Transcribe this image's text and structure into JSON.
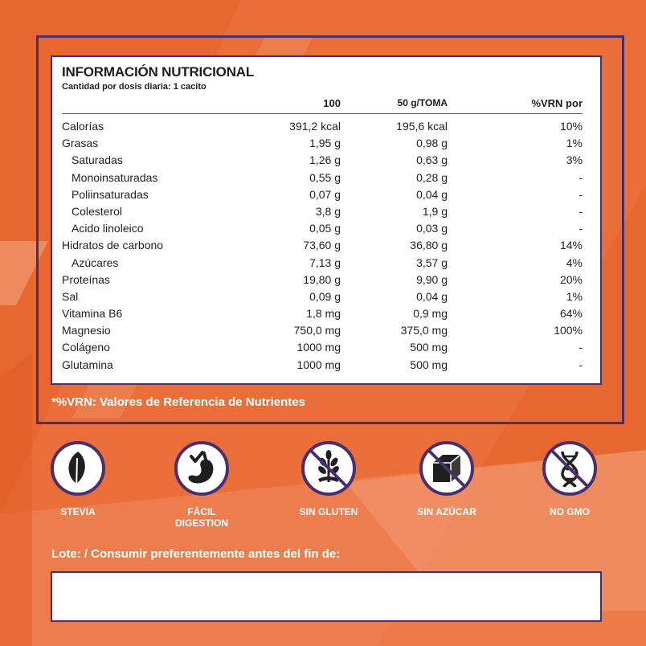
{
  "colors": {
    "background": "#e8662f",
    "accent": "#4a2f6e",
    "panel": "#ffffff"
  },
  "nutrition": {
    "title": "INFORMACIÓN NUTRICIONAL",
    "subtitle": "Cantidad por dosis diaria: 1 cacito",
    "columns": [
      "100",
      "50 g/TOMA",
      "%VRN por"
    ],
    "rows": [
      {
        "label": "Calorías",
        "per100": "391,2 kcal",
        "per_serving": "195,6 kcal",
        "vrn": "10%"
      },
      {
        "label": "Grasas",
        "per100": "1,95 g",
        "per_serving": "0,98 g",
        "vrn": "1%"
      },
      {
        "label": "Saturadas",
        "per100": "1,26 g",
        "per_serving": "0,63 g",
        "vrn": "3%"
      },
      {
        "label": "Monoinsaturadas",
        "per100": "0,55 g",
        "per_serving": "0,28 g",
        "vrn": "-"
      },
      {
        "label": "Poliinsaturadas",
        "per100": "0,07 g",
        "per_serving": "0,04 g",
        "vrn": "-"
      },
      {
        "label": "Colesterol",
        "per100": "3,8 g",
        "per_serving": "1,9 g",
        "vrn": "-"
      },
      {
        "label": "Acido linoleico",
        "per100": "0,05 g",
        "per_serving": "0,03 g",
        "vrn": "-"
      },
      {
        "label": "Hidratos de carbono",
        "per100": "73,60 g",
        "per_serving": "36,80 g",
        "vrn": "14%"
      },
      {
        "label": "Azúcares",
        "per100": "7,13 g",
        "per_serving": "3,57 g",
        "vrn": "4%"
      },
      {
        "label": "Proteínas",
        "per100": "19,80 g",
        "per_serving": "9,90 g",
        "vrn": "20%"
      },
      {
        "label": "Sal",
        "per100": "0,09 g",
        "per_serving": "0,04 g",
        "vrn": "1%"
      },
      {
        "label": "Vitamina B6",
        "per100": "1,8 mg",
        "per_serving": "0,9 mg",
        "vrn": "64%"
      },
      {
        "label": "Magnesio",
        "per100": "750,0 mg",
        "per_serving": "375,0 mg",
        "vrn": "100%"
      },
      {
        "label": "Colágeno",
        "per100": "1000 mg",
        "per_serving": "500 mg",
        "vrn": "-"
      },
      {
        "label": "Glutamina",
        "per100": "1000 mg",
        "per_serving": "500 mg",
        "vrn": "-"
      }
    ]
  },
  "footnote": "*%VRN: Valores de Referencia de Nutrientes",
  "badges": [
    {
      "icon": "leaf-icon",
      "label_lines": [
        "STEVIA"
      ]
    },
    {
      "icon": "stomach-check-icon",
      "label_lines": [
        "FÁCIL",
        "DIGESTION"
      ]
    },
    {
      "icon": "wheat-crossed-icon",
      "label_lines": [
        "SIN GLUTEN"
      ]
    },
    {
      "icon": "sugar-cube-crossed-icon",
      "label_lines": [
        "SIN AZÚCAR"
      ]
    },
    {
      "icon": "dna-crossed-icon",
      "label_lines": [
        "NO GMO"
      ]
    }
  ],
  "lote": {
    "label": "Lote: / Consumir preferentemente antes del fin de:",
    "value": ""
  }
}
